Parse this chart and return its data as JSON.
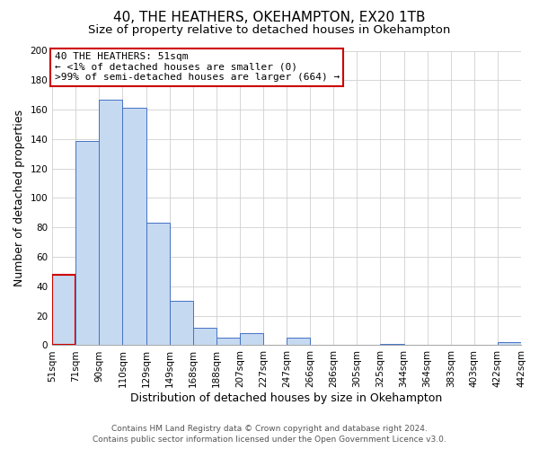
{
  "title": "40, THE HEATHERS, OKEHAMPTON, EX20 1TB",
  "subtitle": "Size of property relative to detached houses in Okehampton",
  "xlabel": "Distribution of detached houses by size in Okehampton",
  "ylabel": "Number of detached properties",
  "bar_labels": [
    "51sqm",
    "71sqm",
    "90sqm",
    "110sqm",
    "129sqm",
    "149sqm",
    "168sqm",
    "188sqm",
    "207sqm",
    "227sqm",
    "247sqm",
    "266sqm",
    "286sqm",
    "305sqm",
    "325sqm",
    "344sqm",
    "364sqm",
    "383sqm",
    "403sqm",
    "422sqm",
    "442sqm"
  ],
  "bar_values": [
    48,
    139,
    167,
    161,
    83,
    30,
    12,
    5,
    8,
    0,
    5,
    0,
    0,
    0,
    1,
    0,
    0,
    0,
    0,
    2
  ],
  "bar_color": "#c5d9f1",
  "bar_edge_color": "#4472c4",
  "highlight_bar_index": 0,
  "highlight_bar_edge_color": "#cc0000",
  "annotation_title": "40 THE HEATHERS: 51sqm",
  "annotation_line1": "← <1% of detached houses are smaller (0)",
  "annotation_line2": ">99% of semi-detached houses are larger (664) →",
  "annotation_box_facecolor": "#ffffff",
  "annotation_box_edgecolor": "#cc0000",
  "ylim": [
    0,
    200
  ],
  "yticks": [
    0,
    20,
    40,
    60,
    80,
    100,
    120,
    140,
    160,
    180,
    200
  ],
  "footer_line1": "Contains HM Land Registry data © Crown copyright and database right 2024.",
  "footer_line2": "Contains public sector information licensed under the Open Government Licence v3.0.",
  "background_color": "#ffffff",
  "grid_color": "#d0d0d0",
  "title_fontsize": 11,
  "subtitle_fontsize": 9.5,
  "axis_label_fontsize": 9,
  "tick_fontsize": 7.5,
  "annotation_fontsize": 8,
  "footer_fontsize": 6.5
}
